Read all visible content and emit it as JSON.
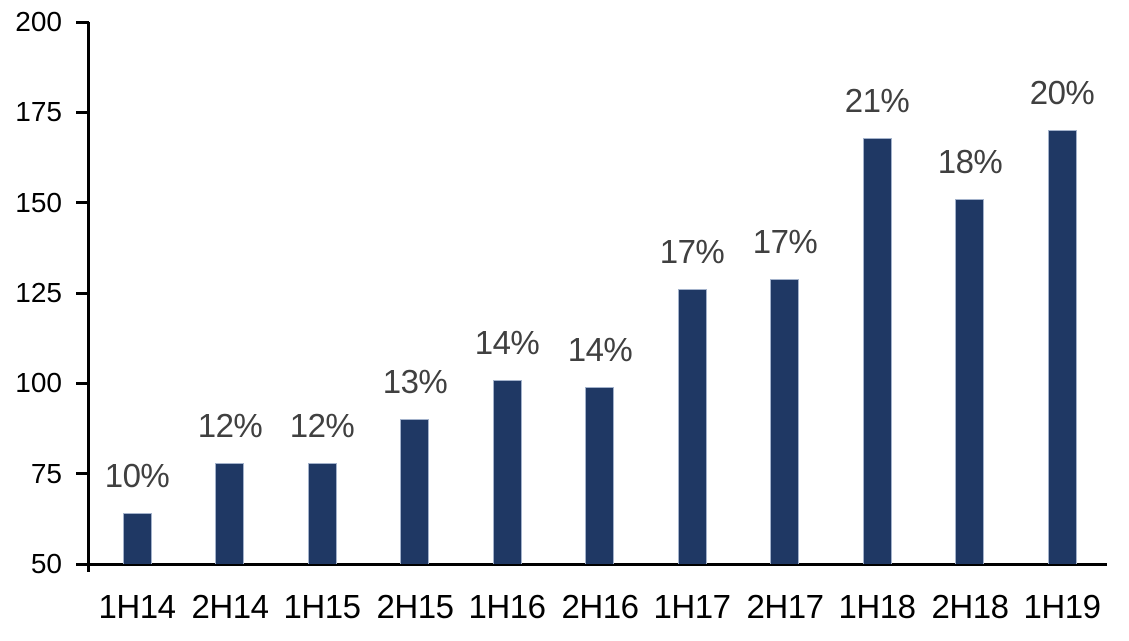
{
  "chart_data": {
    "type": "bar",
    "title": "",
    "xlabel": "",
    "ylabel": "",
    "categories": [
      "1H14",
      "2H14",
      "1H15",
      "2H15",
      "1H16",
      "2H16",
      "1H17",
      "2H17",
      "1H18",
      "2H18",
      "1H19"
    ],
    "values": [
      64,
      78,
      78,
      90,
      101,
      99,
      126,
      129,
      168,
      151,
      170
    ],
    "data_labels": [
      "10%",
      "12%",
      "12%",
      "13%",
      "14%",
      "14%",
      "17%",
      "17%",
      "21%",
      "18%",
      "20%"
    ],
    "ylim": [
      50,
      200
    ],
    "y_ticks": [
      200,
      175,
      150,
      125,
      100,
      75,
      50
    ],
    "grid": "off",
    "legend": "none",
    "colors": {
      "bar_fill": "#1F3864",
      "bar_border": "#A3B2CB",
      "data_label": "#404040",
      "axis": "#000000",
      "background": "#FFFFFF"
    }
  }
}
